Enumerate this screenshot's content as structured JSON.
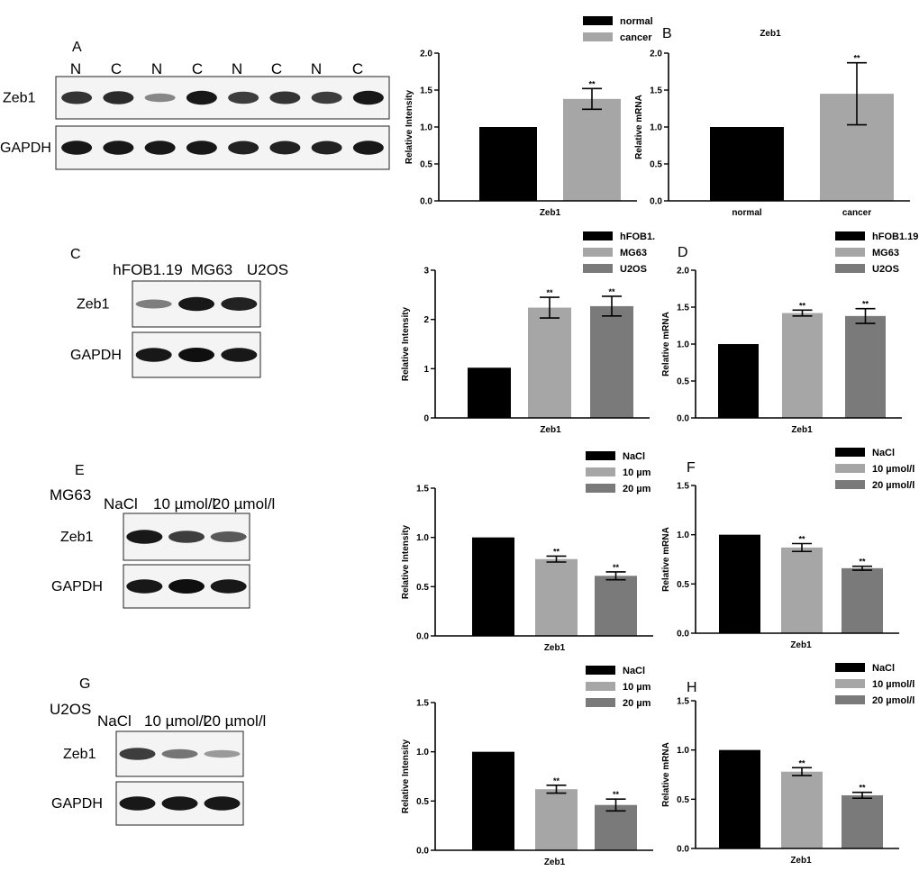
{
  "blots": [
    {
      "panel": "A",
      "cell_line": "",
      "lanes": [
        "N",
        "C",
        "N",
        "C",
        "N",
        "C",
        "N",
        "C"
      ],
      "proteins": [
        "Zeb1",
        "GAPDH"
      ],
      "band_intensity": [
        [
          0.8,
          0.85,
          0.35,
          0.95,
          0.75,
          0.8,
          0.75,
          0.95
        ],
        [
          0.95,
          0.95,
          0.95,
          0.95,
          0.9,
          0.9,
          0.9,
          0.95
        ]
      ]
    },
    {
      "panel": "C",
      "cell_line": "",
      "lanes": [
        "hFOB1.19",
        "MG63",
        "U2OS"
      ],
      "proteins": [
        "Zeb1",
        "GAPDH"
      ],
      "band_intensity": [
        [
          0.4,
          0.95,
          0.9
        ],
        [
          0.95,
          1.0,
          0.95
        ]
      ]
    },
    {
      "panel": "E",
      "cell_line": "MG63",
      "lanes": [
        "NaCl",
        "10 µmol/l",
        "20 µmol/l"
      ],
      "proteins": [
        "Zeb1",
        "GAPDH"
      ],
      "band_intensity": [
        [
          0.95,
          0.75,
          0.6
        ],
        [
          0.95,
          1.0,
          0.95
        ]
      ]
    },
    {
      "panel": "G",
      "cell_line": "U2OS",
      "lanes": [
        "NaCl",
        "10 µmol/l",
        "20 µmol/l"
      ],
      "proteins": [
        "Zeb1",
        "GAPDH"
      ],
      "band_intensity": [
        [
          0.75,
          0.45,
          0.25
        ],
        [
          0.95,
          0.95,
          0.95
        ]
      ]
    }
  ],
  "chart_data": [
    {
      "type": "bar",
      "panel": "",
      "title": "",
      "xlabel": "Zeb1",
      "ylabel": "Relative Intensity",
      "ylim": [
        0,
        2.0
      ],
      "yticks": [
        "0.0",
        "0.5",
        "1.0",
        "1.5",
        "2.0"
      ],
      "categories": [
        ""
      ],
      "series": [
        {
          "name": "normal",
          "values": [
            1.0
          ],
          "error": [
            0
          ],
          "sig": "",
          "color": "#000000"
        },
        {
          "name": "cancer",
          "values": [
            1.38
          ],
          "error": [
            0.14
          ],
          "sig": "**",
          "color": "#a6a6a6"
        }
      ],
      "legend": "top-right"
    },
    {
      "type": "bar",
      "panel": "B",
      "title": "Zeb1",
      "xlabel": "",
      "ylabel": "Relative mRNA",
      "ylim": [
        0,
        2.0
      ],
      "yticks": [
        "0.0",
        "0.5",
        "1.0",
        "1.5",
        "2.0"
      ],
      "categories": [
        "normal",
        "cancer"
      ],
      "series": [
        {
          "name": "",
          "values": [
            1.0,
            1.45
          ],
          "error": [
            0,
            0.42
          ],
          "sig_per_cat": [
            "",
            "**"
          ],
          "colors": [
            "#000000",
            "#a6a6a6"
          ]
        }
      ]
    },
    {
      "type": "bar",
      "panel": "",
      "title": "",
      "xlabel": "Zeb1",
      "ylabel": "Relative Intensity",
      "ylim": [
        0,
        3
      ],
      "yticks": [
        "0",
        "1",
        "2",
        "3"
      ],
      "categories": [
        ""
      ],
      "series": [
        {
          "name": "hFOB1.",
          "values": [
            1.02
          ],
          "error": [
            0
          ],
          "sig": "",
          "color": "#000000"
        },
        {
          "name": "MG63",
          "values": [
            2.24
          ],
          "error": [
            0.21
          ],
          "sig": "**",
          "color": "#a6a6a6"
        },
        {
          "name": "U2OS",
          "values": [
            2.27
          ],
          "error": [
            0.2
          ],
          "sig": "**",
          "color": "#7a7a7a"
        }
      ],
      "legend": "top-right"
    },
    {
      "type": "bar",
      "panel": "D",
      "title": "",
      "xlabel": "Zeb1",
      "ylabel": "Relative mRNA",
      "ylim": [
        0,
        2.0
      ],
      "yticks": [
        "0.0",
        "0.5",
        "1.0",
        "1.5",
        "2.0"
      ],
      "categories": [
        ""
      ],
      "series": [
        {
          "name": "hFOB1.19",
          "values": [
            1.0
          ],
          "error": [
            0
          ],
          "sig": "",
          "color": "#000000"
        },
        {
          "name": "MG63",
          "values": [
            1.42
          ],
          "error": [
            0.04
          ],
          "sig": "**",
          "color": "#a6a6a6"
        },
        {
          "name": "U2OS",
          "values": [
            1.38
          ],
          "error": [
            0.1
          ],
          "sig": "**",
          "color": "#7a7a7a"
        }
      ],
      "legend": "top-right"
    },
    {
      "type": "bar",
      "panel": "",
      "title": "",
      "xlabel": "Zeb1",
      "ylabel": "Relative Intensity",
      "ylim": [
        0,
        1.5
      ],
      "yticks": [
        "0.0",
        "0.5",
        "1.0",
        "1.5"
      ],
      "categories": [
        ""
      ],
      "series": [
        {
          "name": "NaCl",
          "values": [
            1.0
          ],
          "error": [
            0
          ],
          "sig": "",
          "color": "#000000"
        },
        {
          "name": "10 µm",
          "values": [
            0.78
          ],
          "error": [
            0.03
          ],
          "sig": "**",
          "color": "#a6a6a6"
        },
        {
          "name": "20 µm",
          "values": [
            0.61
          ],
          "error": [
            0.04
          ],
          "sig": "**",
          "color": "#7a7a7a"
        }
      ],
      "legend": "top-right"
    },
    {
      "type": "bar",
      "panel": "F",
      "title": "",
      "xlabel": "Zeb1",
      "ylabel": "Relative mRNA",
      "ylim": [
        0,
        1.5
      ],
      "yticks": [
        "0.0",
        "0.5",
        "1.0",
        "1.5"
      ],
      "categories": [
        ""
      ],
      "series": [
        {
          "name": "NaCl",
          "values": [
            1.0
          ],
          "error": [
            0
          ],
          "sig": "",
          "color": "#000000"
        },
        {
          "name": "10 µmol/l",
          "values": [
            0.87
          ],
          "error": [
            0.04
          ],
          "sig": "**",
          "color": "#a6a6a6"
        },
        {
          "name": "20 µmol/l",
          "values": [
            0.66
          ],
          "error": [
            0.02
          ],
          "sig": "**",
          "color": "#7a7a7a"
        }
      ],
      "legend": "top-right"
    },
    {
      "type": "bar",
      "panel": "",
      "title": "",
      "xlabel": "Zeb1",
      "ylabel": "Relative Intensity",
      "ylim": [
        0,
        1.5
      ],
      "yticks": [
        "0.0",
        "0.5",
        "1.0",
        "1.5"
      ],
      "categories": [
        ""
      ],
      "series": [
        {
          "name": "NaCl",
          "values": [
            1.0
          ],
          "error": [
            0
          ],
          "sig": "",
          "color": "#000000"
        },
        {
          "name": "10 µm",
          "values": [
            0.62
          ],
          "error": [
            0.04
          ],
          "sig": "**",
          "color": "#a6a6a6"
        },
        {
          "name": "20 µm",
          "values": [
            0.46
          ],
          "error": [
            0.06
          ],
          "sig": "**",
          "color": "#7a7a7a"
        }
      ],
      "legend": "top-right"
    },
    {
      "type": "bar",
      "panel": "H",
      "title": "",
      "xlabel": "Zeb1",
      "ylabel": "Relative mRNA",
      "ylim": [
        0,
        1.5
      ],
      "yticks": [
        "0.0",
        "0.5",
        "1.0",
        "1.5"
      ],
      "categories": [
        ""
      ],
      "series": [
        {
          "name": "NaCl",
          "values": [
            1.0
          ],
          "error": [
            0
          ],
          "sig": "",
          "color": "#000000"
        },
        {
          "name": "10 µmol/l",
          "values": [
            0.78
          ],
          "error": [
            0.04
          ],
          "sig": "**",
          "color": "#a6a6a6"
        },
        {
          "name": "20 µmol/l",
          "values": [
            0.54
          ],
          "error": [
            0.03
          ],
          "sig": "**",
          "color": "#7a7a7a"
        }
      ],
      "legend": "top-right"
    }
  ]
}
